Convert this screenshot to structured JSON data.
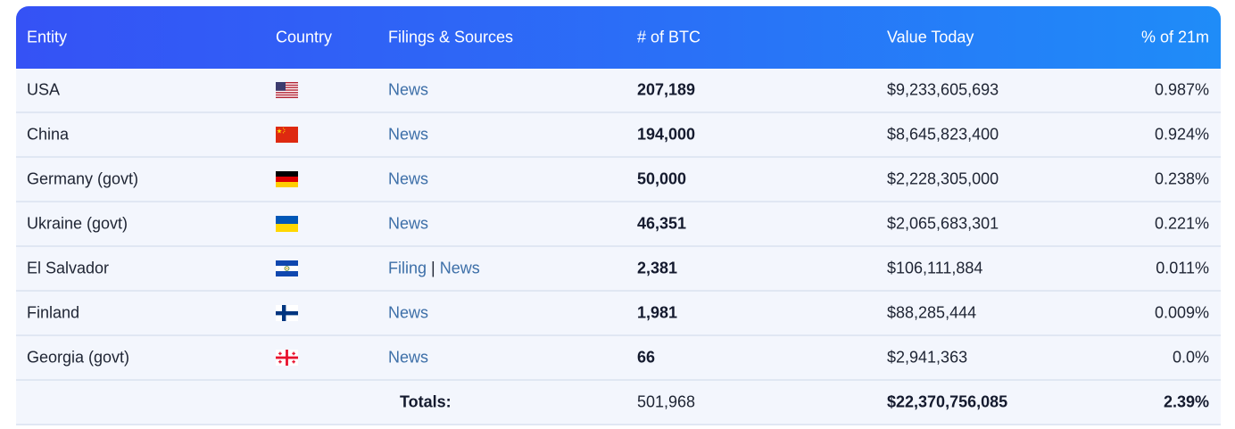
{
  "headers": {
    "entity": "Entity",
    "country": "Country",
    "sources": "Filings & Sources",
    "btc": "# of BTC",
    "value": "Value Today",
    "pct": "% of 21m"
  },
  "rows": [
    {
      "entity": "USA",
      "flag": "us-flag-icon",
      "links": [
        "News"
      ],
      "btc": "207,189",
      "value": "$9,233,605,693",
      "pct": "0.987%"
    },
    {
      "entity": "China",
      "flag": "cn-flag-icon",
      "links": [
        "News"
      ],
      "btc": "194,000",
      "value": "$8,645,823,400",
      "pct": "0.924%"
    },
    {
      "entity": "Germany (govt)",
      "flag": "de-flag-icon",
      "links": [
        "News"
      ],
      "btc": "50,000",
      "value": "$2,228,305,000",
      "pct": "0.238%"
    },
    {
      "entity": "Ukraine (govt)",
      "flag": "ua-flag-icon",
      "links": [
        "News"
      ],
      "btc": "46,351",
      "value": "$2,065,683,301",
      "pct": "0.221%"
    },
    {
      "entity": "El Salvador",
      "flag": "sv-flag-icon",
      "links": [
        "Filing",
        "News"
      ],
      "separator": "|",
      "btc": "2,381",
      "value": "$106,111,884",
      "pct": "0.011%"
    },
    {
      "entity": "Finland",
      "flag": "fi-flag-icon",
      "links": [
        "News"
      ],
      "btc": "1,981",
      "value": "$88,285,444",
      "pct": "0.009%"
    },
    {
      "entity": "Georgia (govt)",
      "flag": "ge-flag-icon",
      "links": [
        "News"
      ],
      "btc": "66",
      "value": "$2,941,363",
      "pct": "0.0%"
    }
  ],
  "totals": {
    "label": "Totals:",
    "btc": "501,968",
    "value": "$22,370,756,085",
    "pct": "2.39%"
  },
  "colors": {
    "header_start": "#3552f5",
    "header_end": "#1f8cf8",
    "row_bg": "#f3f6fd",
    "link": "#3d6fa8"
  }
}
